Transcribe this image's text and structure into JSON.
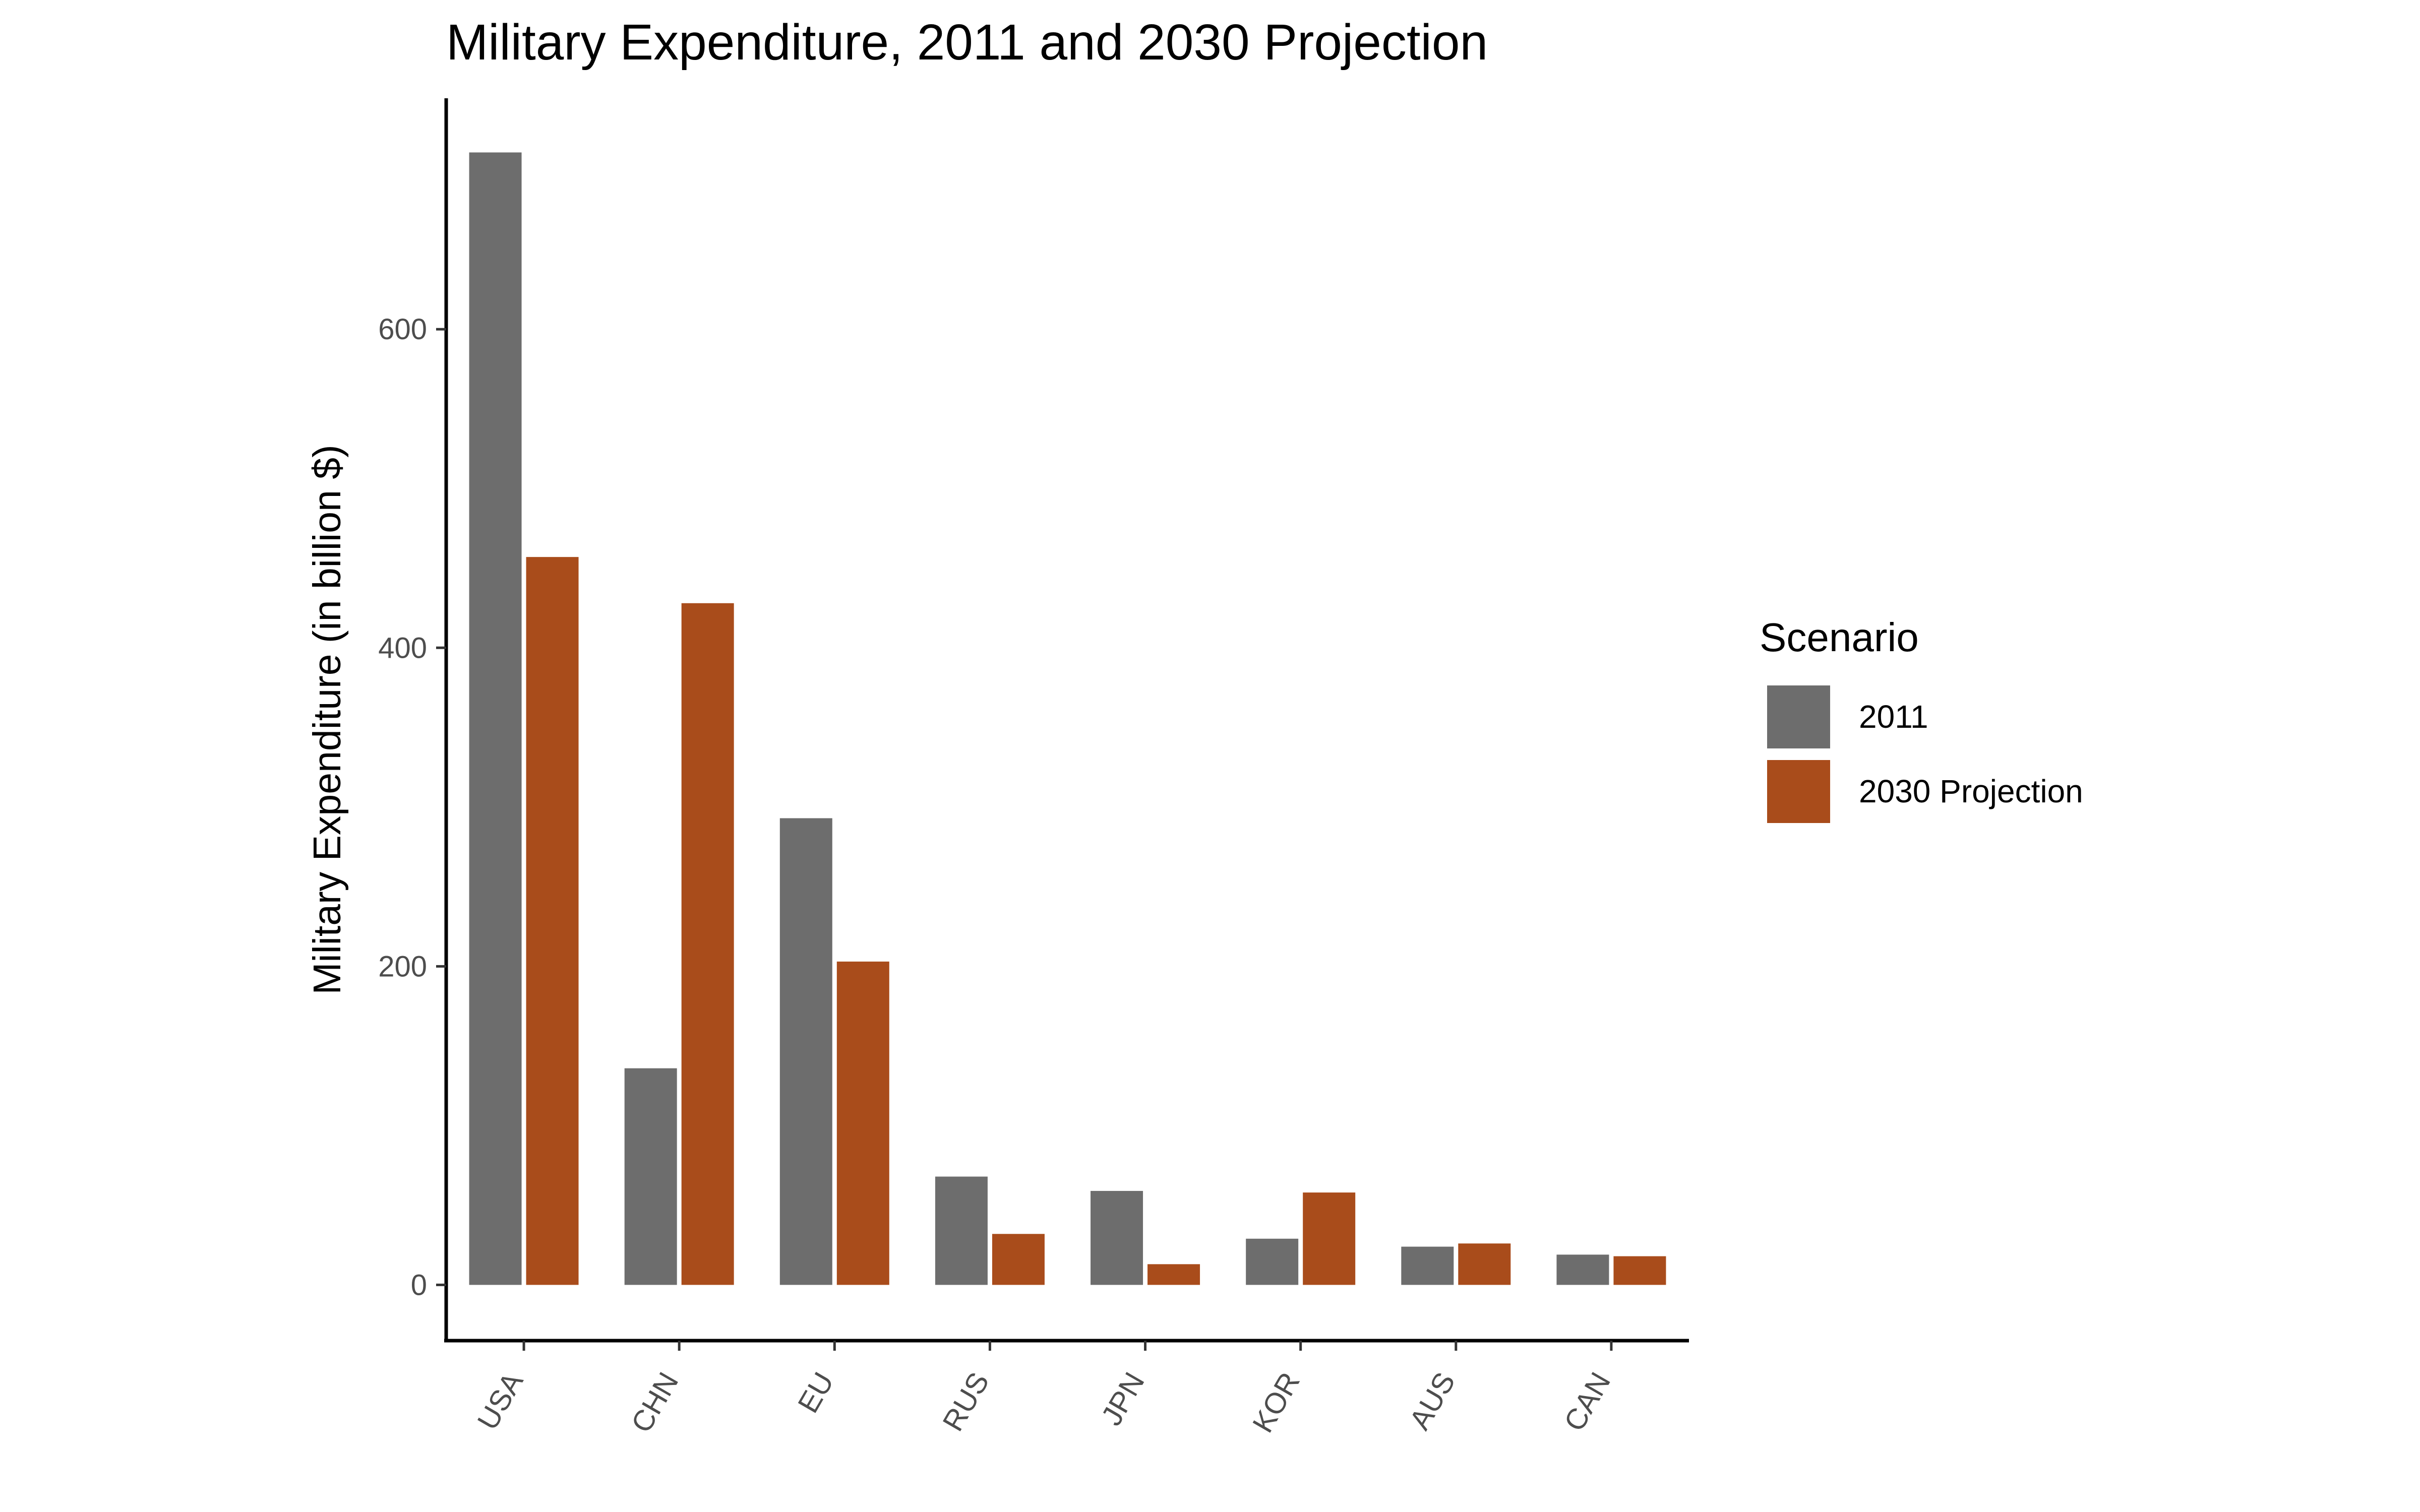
{
  "chart_data": {
    "type": "bar",
    "title": "Military Expenditure, 2011 and 2030 Projection",
    "xlabel": "",
    "ylabel": "Military Expenditure (in billion $)",
    "categories": [
      "USA",
      "CHN",
      "EU",
      "RUS",
      "JPN",
      "KOR",
      "AUS",
      "CAN"
    ],
    "series": [
      {
        "name": "2011",
        "color": "#6d6d6d",
        "values": [
          711,
          136,
          293,
          68,
          59,
          29,
          24,
          19
        ]
      },
      {
        "name": "2030 Projection",
        "color": "#a94c1b",
        "values": [
          457,
          428,
          203,
          32,
          13,
          58,
          26,
          18
        ]
      }
    ],
    "yticks": [
      "0",
      "200",
      "400",
      "600"
    ],
    "ylim": [
      -35,
      745
    ],
    "grid": false,
    "legend": {
      "title": "Scenario",
      "position": "right"
    }
  }
}
